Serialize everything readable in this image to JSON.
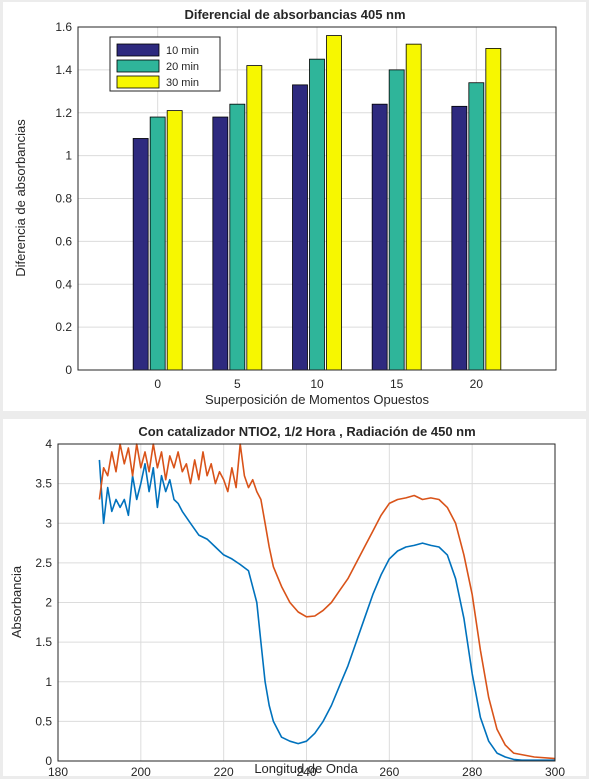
{
  "chart_data": [
    {
      "type": "bar",
      "title": "Diferencial de absorbancias 405 nm",
      "xlabel": "Superposición de Momentos Opuestos",
      "ylabel": "Diferencia de absorbancias",
      "categories": [
        "0",
        "5",
        "10",
        "15",
        "20"
      ],
      "series": [
        {
          "name": "10 min",
          "color": "#2e2a7f",
          "values": [
            1.08,
            1.18,
            1.33,
            1.24,
            1.23
          ]
        },
        {
          "name": "20 min",
          "color": "#2fb59a",
          "values": [
            1.18,
            1.24,
            1.45,
            1.4,
            1.34
          ]
        },
        {
          "name": "30 min",
          "color": "#f7f700",
          "values": [
            1.21,
            1.42,
            1.56,
            1.52,
            1.5
          ]
        }
      ],
      "ylim": [
        0,
        1.6
      ],
      "yticks": [
        "0",
        "0.2",
        "0.4",
        "0.6",
        "0.8",
        "1",
        "1.2",
        "1.4",
        "1.6"
      ],
      "grid": true,
      "legend_position": "top-left"
    },
    {
      "type": "line",
      "title": "Con catalizador NTIO2, 1/2 Hora , Radiación de 450 nm",
      "xlabel": "Longitud de Onda",
      "ylabel": "Absorbancia",
      "xlim": [
        180,
        300
      ],
      "ylim": [
        0,
        4
      ],
      "xticks": [
        "180",
        "200",
        "220",
        "240",
        "260",
        "280",
        "300"
      ],
      "yticks": [
        "0",
        "0.5",
        "1",
        "1.5",
        "2",
        "2.5",
        "3",
        "3.5",
        "4"
      ],
      "grid": true,
      "series": [
        {
          "color": "#0072bd",
          "x": [
            190,
            191,
            192,
            193,
            194,
            195,
            196,
            197,
            198,
            199,
            200,
            201,
            202,
            203,
            204,
            205,
            206,
            207,
            208,
            209,
            210,
            212,
            214,
            216,
            218,
            220,
            222,
            224,
            226,
            228,
            229,
            230,
            231,
            232,
            234,
            236,
            238,
            240,
            242,
            244,
            246,
            248,
            250,
            252,
            254,
            256,
            258,
            260,
            262,
            264,
            266,
            268,
            270,
            272,
            274,
            276,
            278,
            280,
            282,
            284,
            286,
            288,
            290,
            292,
            295,
            300
          ],
          "y": [
            3.8,
            3.0,
            3.45,
            3.15,
            3.3,
            3.2,
            3.3,
            3.1,
            3.6,
            3.3,
            3.5,
            3.75,
            3.4,
            3.7,
            3.2,
            3.6,
            3.4,
            3.55,
            3.3,
            3.25,
            3.15,
            3.0,
            2.85,
            2.8,
            2.7,
            2.6,
            2.55,
            2.48,
            2.4,
            2.0,
            1.5,
            1.0,
            0.7,
            0.5,
            0.3,
            0.25,
            0.22,
            0.25,
            0.35,
            0.5,
            0.7,
            0.95,
            1.2,
            1.5,
            1.8,
            2.1,
            2.35,
            2.55,
            2.65,
            2.7,
            2.72,
            2.75,
            2.72,
            2.7,
            2.6,
            2.3,
            1.8,
            1.1,
            0.55,
            0.25,
            0.1,
            0.05,
            0.02,
            0.01,
            0.01,
            0.01
          ]
        },
        {
          "color": "#d95319",
          "x": [
            190,
            191,
            192,
            193,
            194,
            195,
            196,
            197,
            198,
            199,
            200,
            201,
            202,
            203,
            204,
            205,
            206,
            207,
            208,
            209,
            210,
            211,
            212,
            213,
            214,
            215,
            216,
            217,
            218,
            219,
            220,
            221,
            222,
            223,
            224,
            225,
            226,
            227,
            228,
            229,
            230,
            231,
            232,
            234,
            236,
            238,
            240,
            242,
            244,
            246,
            248,
            250,
            252,
            254,
            256,
            258,
            260,
            262,
            264,
            266,
            268,
            270,
            272,
            274,
            276,
            278,
            280,
            282,
            284,
            286,
            288,
            290,
            295,
            300
          ],
          "y": [
            3.3,
            3.7,
            3.6,
            3.9,
            3.65,
            4.0,
            3.75,
            3.95,
            3.6,
            4.0,
            3.7,
            3.9,
            3.65,
            4.0,
            3.7,
            3.9,
            3.55,
            3.85,
            3.7,
            3.9,
            3.65,
            3.75,
            3.5,
            3.8,
            3.55,
            3.9,
            3.6,
            3.75,
            3.5,
            3.65,
            3.55,
            3.4,
            3.7,
            3.45,
            4.0,
            3.6,
            3.45,
            3.55,
            3.4,
            3.3,
            3.0,
            2.7,
            2.45,
            2.2,
            2.0,
            1.88,
            1.82,
            1.83,
            1.9,
            2.0,
            2.15,
            2.3,
            2.5,
            2.7,
            2.9,
            3.1,
            3.25,
            3.3,
            3.32,
            3.35,
            3.3,
            3.32,
            3.3,
            3.2,
            3.0,
            2.6,
            2.1,
            1.4,
            0.8,
            0.4,
            0.2,
            0.1,
            0.05,
            0.03
          ]
        }
      ]
    }
  ]
}
